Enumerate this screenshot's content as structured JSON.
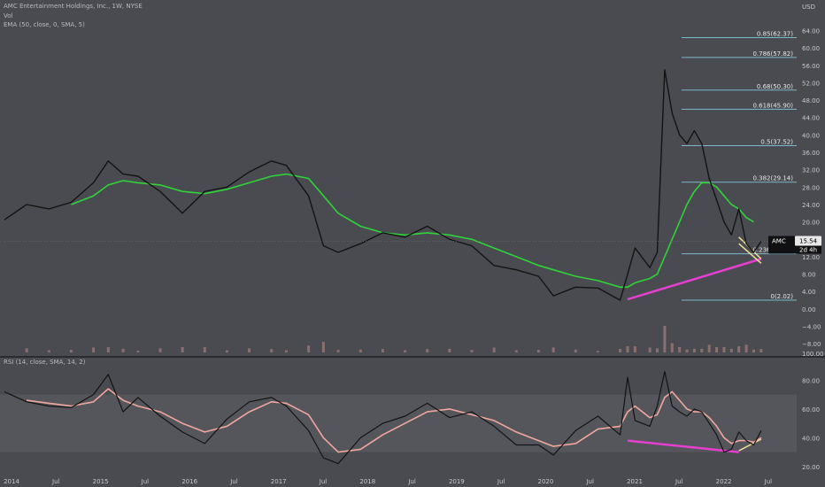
{
  "header": {
    "symbol_line": "AMC Entertainment Holdings, Inc., 1W, NYSE",
    "vol_label": "Vol",
    "ema_label": "EMA (50, close, 0, SMA, 5)",
    "rsi_label": "RSI (14, close, SMA, 14, 2)"
  },
  "price_axis": {
    "currency": "USD",
    "ticks": [
      "64.00",
      "60.00",
      "56.00",
      "52.00",
      "48.00",
      "44.00",
      "40.00",
      "36.00",
      "32.00",
      "28.00",
      "24.00",
      "20.00",
      "16.00",
      "12.00",
      "8.00",
      "4.00",
      "0.00",
      "−4.00",
      "−8.00"
    ],
    "last_price": "15.54",
    "badge_symbol": "AMC",
    "badge_time": "2d 4h",
    "vol_tick": "100.00"
  },
  "rsi_axis": {
    "ticks": [
      "80.00",
      "60.00",
      "40.00",
      "20.00"
    ]
  },
  "time_axis": {
    "labels": [
      "2014",
      "Jul",
      "2015",
      "Jul",
      "2016",
      "Jul",
      "2017",
      "Jul",
      "2018",
      "Jul",
      "2019",
      "Jul",
      "2020",
      "Jul",
      "2021",
      "Jul",
      "2022",
      "Jul"
    ]
  },
  "fib_levels": [
    {
      "label": "0.85(62.37)",
      "value": 62.37
    },
    {
      "label": "0.786(57.82)",
      "value": 57.82
    },
    {
      "label": "0.68(50.30)",
      "value": 50.3
    },
    {
      "label": "0.618(45.90)",
      "value": 45.9
    },
    {
      "label": "0.5(37.52)",
      "value": 37.52
    },
    {
      "label": "0.382(29.14)",
      "value": 29.14
    },
    {
      "label": "0.236(12.67)",
      "value": 12.67
    },
    {
      "label": "0(2.02)",
      "value": 2.02
    }
  ],
  "colors": {
    "background": "#4a4b50",
    "rsi_band": "#55565c",
    "price_line": "#131313",
    "ema": "#2fd33a",
    "rsi_ma": "#f1a7a0",
    "trendline": "#e63fd0",
    "yellow_line": "#f2e29a",
    "fib": "#7fb8c8",
    "volume": "#8a6f70",
    "badge_bg": "#101012"
  },
  "chart_data": {
    "type": "line",
    "title": "AMC Entertainment Holdings, Inc., 1W, NYSE",
    "x": [
      "2014-01",
      "2014-04",
      "2014-07",
      "2014-10",
      "2015-01",
      "2015-03",
      "2015-05",
      "2015-07",
      "2015-10",
      "2016-01",
      "2016-04",
      "2016-07",
      "2016-10",
      "2017-01",
      "2017-03",
      "2017-06",
      "2017-08",
      "2017-10",
      "2018-01",
      "2018-04",
      "2018-07",
      "2018-10",
      "2019-01",
      "2019-04",
      "2019-07",
      "2019-10",
      "2020-01",
      "2020-03",
      "2020-06",
      "2020-09",
      "2020-12",
      "2021-01",
      "2021-02",
      "2021-04",
      "2021-05",
      "2021-06",
      "2021-07",
      "2021-08",
      "2021-09",
      "2021-10",
      "2021-11",
      "2021-12",
      "2022-01",
      "2022-02",
      "2022-03",
      "2022-04",
      "2022-05",
      "2022-06",
      "2022-07"
    ],
    "series": [
      {
        "values": [
          20.5,
          24,
          23,
          24.5,
          29,
          34,
          31,
          30.5,
          27,
          22,
          27,
          28,
          31.5,
          34,
          33,
          26,
          14.5,
          13,
          15,
          17.5,
          16.5,
          19,
          16,
          14.5,
          10,
          9,
          7.5,
          3,
          5,
          4.8,
          2,
          8,
          14,
          9.5,
          13,
          55,
          45,
          40,
          38,
          41,
          38,
          30,
          25,
          20,
          17,
          23,
          15,
          13,
          15.54
        ]
      },
      {
        "name": "EMA (50, close, 0, SMA, 5)",
        "values": [
          null,
          null,
          null,
          24,
          26,
          28.5,
          29.5,
          29,
          28.5,
          27,
          26.5,
          27.5,
          29,
          30.5,
          31,
          30,
          26,
          22,
          19,
          17.5,
          17,
          17.5,
          17,
          16,
          14,
          12,
          10,
          9,
          7.5,
          6.5,
          5,
          5,
          6,
          7,
          8,
          12,
          16,
          20,
          24,
          27,
          29,
          29,
          28,
          26,
          24,
          23,
          21,
          20,
          null
        ]
      }
    ],
    "ylim": [
      -10,
      70
    ],
    "rsi": {
      "name": "RSI (14, close, SMA, 14, 2)",
      "x": [
        "2014-01",
        "2014-04",
        "2014-07",
        "2014-10",
        "2015-01",
        "2015-03",
        "2015-05",
        "2015-07",
        "2015-10",
        "2016-01",
        "2016-04",
        "2016-07",
        "2016-10",
        "2017-01",
        "2017-03",
        "2017-06",
        "2017-08",
        "2017-10",
        "2018-01",
        "2018-04",
        "2018-07",
        "2018-10",
        "2019-01",
        "2019-04",
        "2019-07",
        "2019-10",
        "2020-01",
        "2020-03",
        "2020-06",
        "2020-09",
        "2020-12",
        "2021-01",
        "2021-02",
        "2021-04",
        "2021-05",
        "2021-06",
        "2021-07",
        "2021-08",
        "2021-09",
        "2021-10",
        "2021-11",
        "2021-12",
        "2022-01",
        "2022-02",
        "2022-03",
        "2022-04",
        "2022-05",
        "2022-06",
        "2022-07"
      ],
      "values": [
        72,
        65,
        62,
        61,
        70,
        84,
        58,
        68,
        55,
        44,
        36,
        53,
        65,
        68,
        62,
        45,
        26,
        22,
        40,
        50,
        55,
        64,
        54,
        58,
        48,
        35,
        35,
        28,
        45,
        55,
        42,
        82,
        52,
        48,
        62,
        86,
        62,
        58,
        55,
        60,
        58,
        50,
        42,
        30,
        32,
        44,
        38,
        35,
        45
      ],
      "ma_values": [
        null,
        66,
        64,
        62,
        65,
        74,
        66,
        62,
        58,
        50,
        44,
        48,
        58,
        65,
        64,
        56,
        40,
        30,
        32,
        42,
        50,
        58,
        60,
        56,
        52,
        44,
        38,
        34,
        36,
        46,
        48,
        58,
        62,
        54,
        56,
        68,
        72,
        66,
        60,
        58,
        58,
        54,
        48,
        40,
        36,
        38,
        38,
        37,
        40
      ],
      "ylim": [
        15,
        95
      ],
      "bands": [
        30,
        70
      ]
    }
  }
}
